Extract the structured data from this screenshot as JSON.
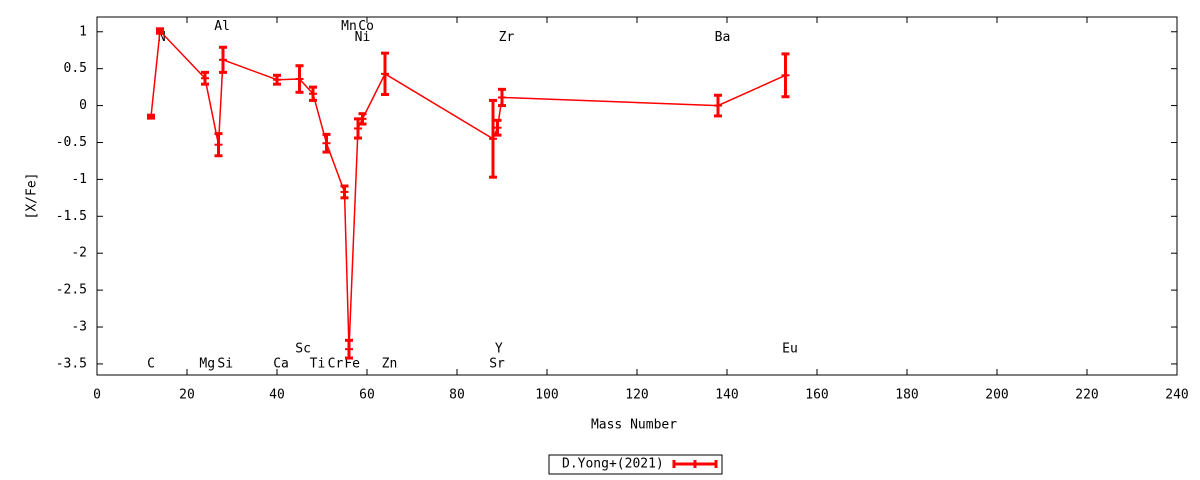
{
  "chart_data": {
    "type": "line",
    "x_label": "Mass Number",
    "y_label": "[X/Fe]",
    "xlim": [
      0,
      240
    ],
    "xticks": [
      0,
      20,
      40,
      60,
      80,
      100,
      120,
      140,
      160,
      180,
      200,
      220,
      240
    ],
    "ylim": [
      -3.65,
      1.2
    ],
    "yticks": [
      1,
      0.5,
      0,
      -0.5,
      -1,
      -1.5,
      -2,
      -2.5,
      -3,
      -3.5
    ],
    "grid": false,
    "legend": "bottom",
    "x": [
      12,
      14,
      24,
      27,
      28,
      40,
      45,
      48,
      51,
      55,
      56,
      58,
      59,
      64,
      88,
      89,
      90,
      138,
      153
    ],
    "series": [
      {
        "name": "D.Yong+(2021)",
        "color": "#ff0000",
        "values": [
          -0.15,
          1.01,
          0.37,
          -0.53,
          0.62,
          0.35,
          0.36,
          0.16,
          -0.51,
          -1.17,
          -3.3,
          -0.31,
          -0.18,
          0.43,
          -0.45,
          -0.3,
          0.11,
          0.0,
          0.41
        ],
        "errors": [
          0.02,
          0.03,
          0.08,
          0.15,
          0.17,
          0.06,
          0.18,
          0.09,
          0.12,
          0.08,
          0.12,
          0.13,
          0.07,
          0.28,
          0.52,
          0.1,
          0.11,
          0.14,
          0.29
        ]
      }
    ],
    "annotations": [
      {
        "label": "C",
        "x": 12,
        "y": -3.5
      },
      {
        "label": "N",
        "x": 14.4,
        "y": 0.92
      },
      {
        "label": "Al",
        "x": 27.8,
        "y": 1.07
      },
      {
        "label": "Mg",
        "x": 24.5,
        "y": -3.5
      },
      {
        "label": "Si",
        "x": 28.5,
        "y": -3.5
      },
      {
        "label": "Ca",
        "x": 40.9,
        "y": -3.5
      },
      {
        "label": "Sc",
        "x": 45.8,
        "y": -3.3
      },
      {
        "label": "Ti",
        "x": 49,
        "y": -3.5
      },
      {
        "label": "Cr",
        "x": 53,
        "y": -3.5
      },
      {
        "label": "Fe",
        "x": 56.7,
        "y": -3.5
      },
      {
        "label": "Mn",
        "x": 56,
        "y": 1.07
      },
      {
        "label": "Co",
        "x": 59.8,
        "y": 1.07
      },
      {
        "label": "Ni",
        "x": 59,
        "y": 0.92
      },
      {
        "label": "Zn",
        "x": 65,
        "y": -3.5
      },
      {
        "label": "Zr",
        "x": 91,
        "y": 0.92
      },
      {
        "label": "Y",
        "x": 89.3,
        "y": -3.3
      },
      {
        "label": "Sr",
        "x": 88.9,
        "y": -3.5
      },
      {
        "label": "Ba",
        "x": 139,
        "y": 0.92
      },
      {
        "label": "Eu",
        "x": 154,
        "y": -3.3
      }
    ]
  }
}
